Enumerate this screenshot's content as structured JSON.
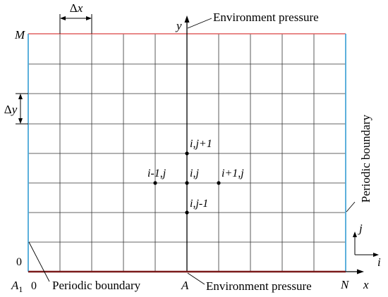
{
  "labels": {
    "M": "M",
    "y": "y",
    "x": "x",
    "zero_left": "0",
    "A1": "A",
    "A1_sub": "1",
    "zero_bottom": "0",
    "A": "A",
    "N": "N",
    "dx": "Δx",
    "dy": "Δy",
    "j_axis": "j",
    "i_axis": "i",
    "env_top": "Environment pressure",
    "env_bottom": "Environment pressure",
    "periodic_bottom": "Periodic boundary",
    "periodic_right": "Periodic boundary"
  },
  "nodes": {
    "center": "i,j",
    "left": "i-1,j",
    "right": "i+1,j",
    "up": "i,j+1",
    "down": "i,j-1"
  },
  "colors": {
    "grid": "#333333",
    "top_boundary": "#e06060",
    "bottom_boundary": "#7a1a1a",
    "side_boundary": "#4aa8d8",
    "axis": "#000000"
  }
}
